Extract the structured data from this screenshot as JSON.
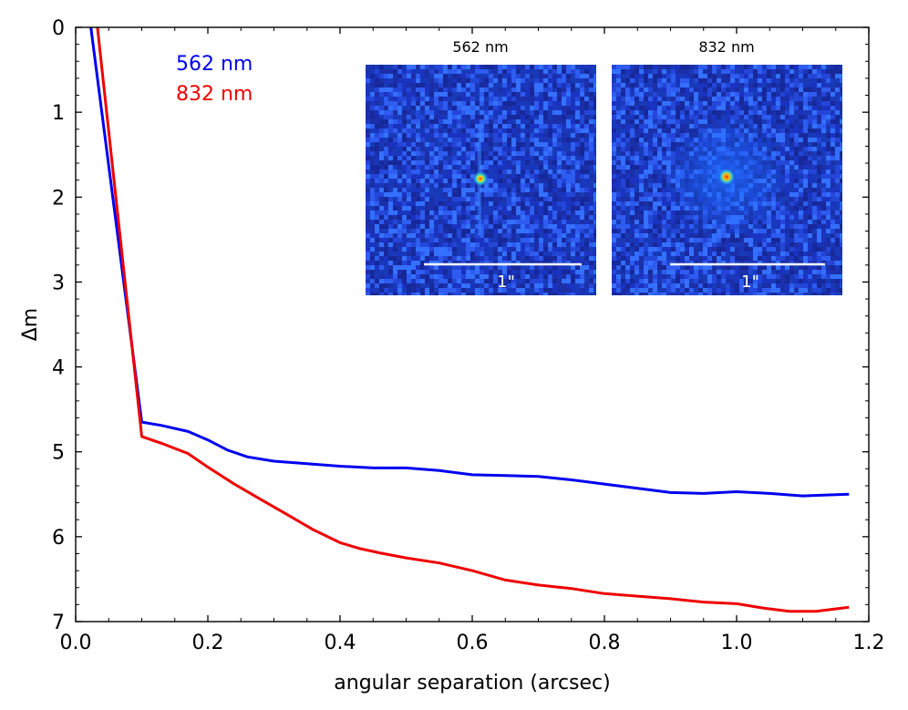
{
  "chart_data": {
    "type": "line",
    "xlabel": "angular separation (arcsec)",
    "ylabel": "Δm",
    "xlim": [
      0.0,
      1.2
    ],
    "ylim": [
      0,
      7
    ],
    "y_inverted": true,
    "grid": false,
    "legend_position": "top-left",
    "xticks": [
      0.0,
      0.2,
      0.4,
      0.6,
      0.8,
      1.0,
      1.2
    ],
    "xtick_labels": [
      "0.0",
      "0.2",
      "0.4",
      "0.6",
      "0.8",
      "1.0",
      "1.2"
    ],
    "yticks": [
      0,
      1,
      2,
      3,
      4,
      5,
      6,
      7
    ],
    "ytick_labels": [
      "0",
      "1",
      "2",
      "3",
      "4",
      "5",
      "6",
      "7"
    ],
    "series": [
      {
        "name": "562 nm",
        "color": "#0000ee",
        "x": [
          0.023,
          0.1,
          0.13,
          0.17,
          0.2,
          0.23,
          0.26,
          0.3,
          0.35,
          0.4,
          0.45,
          0.5,
          0.55,
          0.6,
          0.65,
          0.7,
          0.75,
          0.8,
          0.85,
          0.9,
          0.95,
          1.0,
          1.05,
          1.1,
          1.17
        ],
        "y": [
          0.0,
          4.65,
          4.69,
          4.76,
          4.86,
          4.98,
          5.06,
          5.11,
          5.14,
          5.17,
          5.19,
          5.19,
          5.22,
          5.27,
          5.28,
          5.29,
          5.33,
          5.38,
          5.43,
          5.48,
          5.49,
          5.47,
          5.49,
          5.52,
          5.5
        ]
      },
      {
        "name": "832 nm",
        "color": "#ee0000",
        "x": [
          0.033,
          0.1,
          0.13,
          0.17,
          0.2,
          0.24,
          0.28,
          0.32,
          0.36,
          0.4,
          0.43,
          0.46,
          0.5,
          0.55,
          0.6,
          0.65,
          0.7,
          0.75,
          0.8,
          0.85,
          0.9,
          0.95,
          1.0,
          1.04,
          1.08,
          1.12,
          1.17
        ],
        "y": [
          0.0,
          4.82,
          4.9,
          5.02,
          5.18,
          5.38,
          5.56,
          5.74,
          5.92,
          6.07,
          6.14,
          6.19,
          6.25,
          6.31,
          6.4,
          6.51,
          6.57,
          6.61,
          6.67,
          6.7,
          6.73,
          6.77,
          6.79,
          6.84,
          6.88,
          6.88,
          6.83
        ]
      }
    ],
    "insets": [
      {
        "title": "562 nm",
        "scale_label": "1\""
      },
      {
        "title": "832 nm",
        "scale_label": "1\""
      }
    ]
  }
}
